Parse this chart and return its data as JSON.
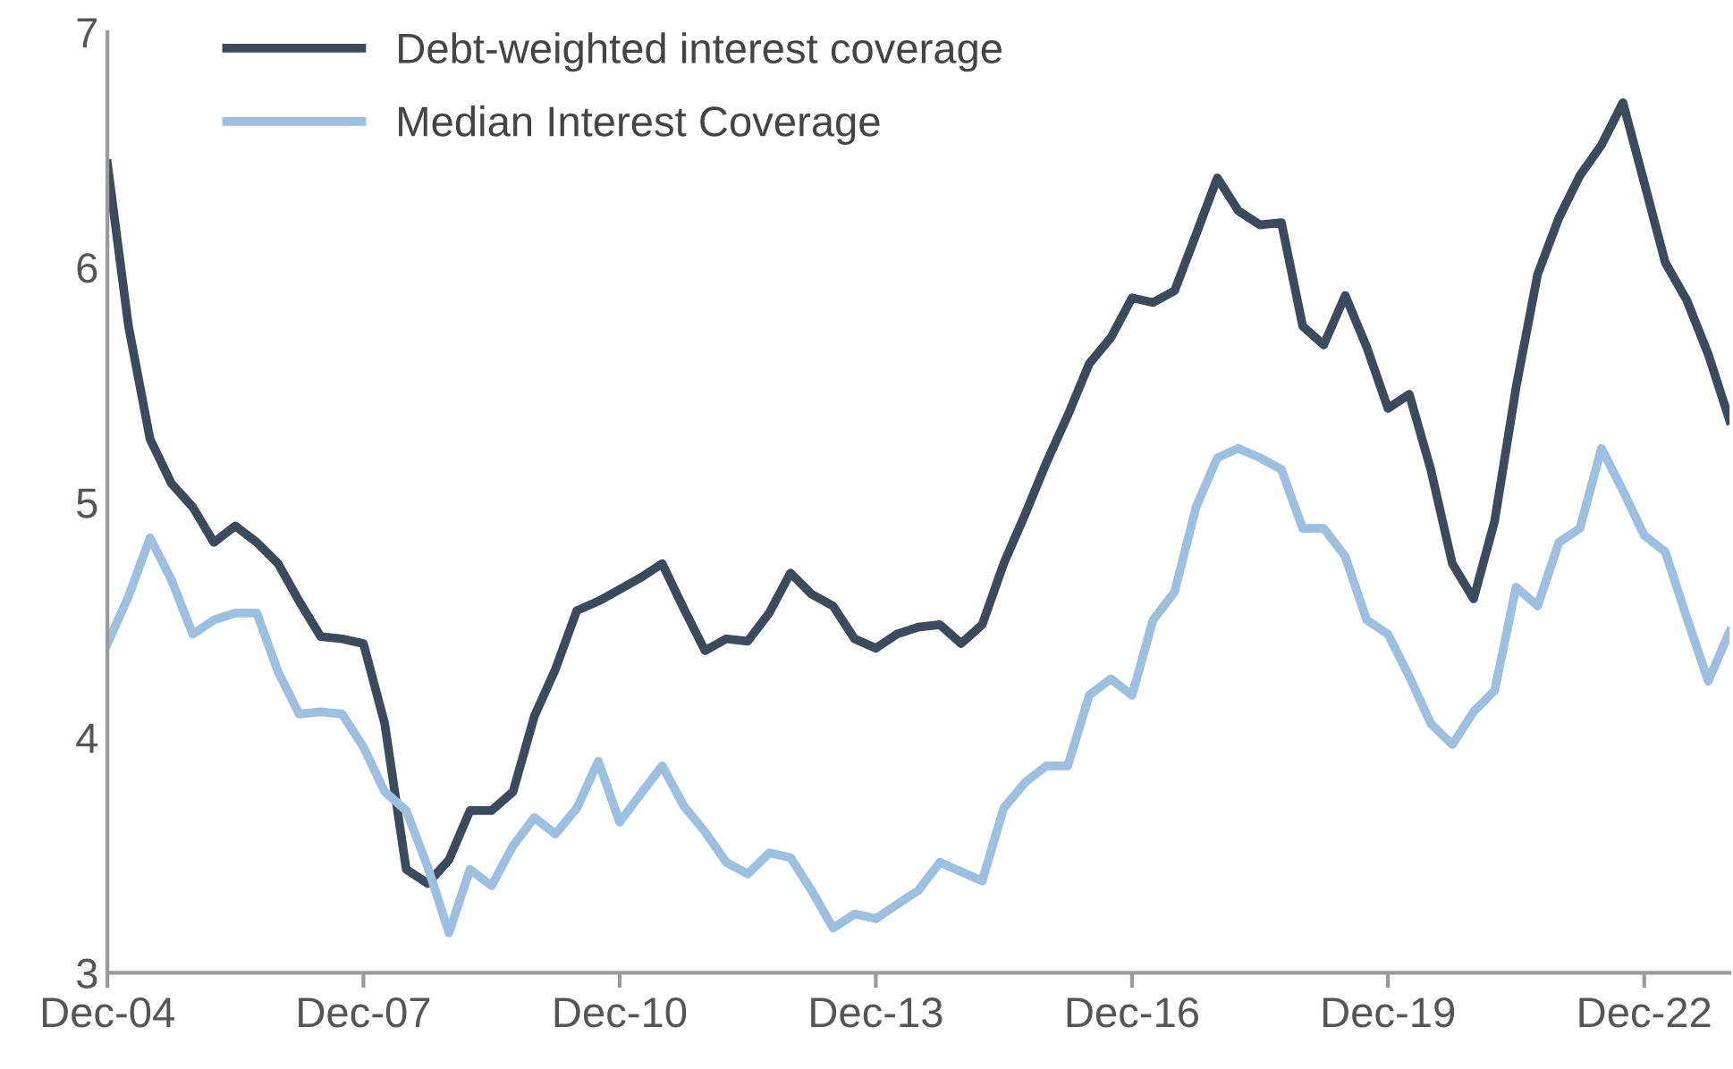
{
  "chart_data": {
    "type": "line",
    "x": [
      "2004-12",
      "2005-03",
      "2005-06",
      "2005-09",
      "2005-12",
      "2006-03",
      "2006-06",
      "2006-09",
      "2006-12",
      "2007-03",
      "2007-06",
      "2007-09",
      "2007-12",
      "2008-03",
      "2008-06",
      "2008-09",
      "2008-12",
      "2009-03",
      "2009-06",
      "2009-09",
      "2009-12",
      "2010-03",
      "2010-06",
      "2010-09",
      "2010-12",
      "2011-03",
      "2011-06",
      "2011-09",
      "2011-12",
      "2012-03",
      "2012-06",
      "2012-09",
      "2012-12",
      "2013-03",
      "2013-06",
      "2013-09",
      "2013-12",
      "2014-03",
      "2014-06",
      "2014-09",
      "2014-12",
      "2015-03",
      "2015-06",
      "2015-09",
      "2015-12",
      "2016-03",
      "2016-06",
      "2016-09",
      "2016-12",
      "2017-03",
      "2017-06",
      "2017-09",
      "2017-12",
      "2018-03",
      "2018-06",
      "2018-09",
      "2018-12",
      "2019-03",
      "2019-06",
      "2019-09",
      "2019-12",
      "2020-03",
      "2020-06",
      "2020-09",
      "2020-12",
      "2021-03",
      "2021-06",
      "2021-09",
      "2021-12",
      "2022-03",
      "2022-06",
      "2022-09",
      "2022-12",
      "2023-03",
      "2023-06",
      "2023-09",
      "2023-12"
    ],
    "series": [
      {
        "name": "Debt-weighted interest coverage",
        "color": "#3c4a5e",
        "values": [
          6.44,
          5.75,
          5.27,
          5.08,
          4.98,
          4.83,
          4.9,
          4.83,
          4.74,
          4.58,
          4.43,
          4.42,
          4.4,
          4.06,
          3.44,
          3.38,
          3.48,
          3.69,
          3.69,
          3.77,
          4.09,
          4.29,
          4.54,
          4.58,
          4.63,
          4.68,
          4.74,
          4.55,
          4.37,
          4.42,
          4.41,
          4.53,
          4.7,
          4.61,
          4.56,
          4.42,
          4.38,
          4.44,
          4.47,
          4.48,
          4.4,
          4.48,
          4.74,
          4.95,
          5.17,
          5.37,
          5.59,
          5.7,
          5.87,
          5.85,
          5.9,
          6.14,
          6.38,
          6.24,
          6.18,
          6.19,
          5.75,
          5.67,
          5.88,
          5.66,
          5.4,
          5.46,
          5.14,
          4.74,
          4.59,
          4.92,
          5.49,
          5.97,
          6.21,
          6.39,
          6.52,
          6.7,
          6.36,
          6.02,
          5.86,
          5.63,
          5.35
        ]
      },
      {
        "name": "Median Interest Coverage",
        "color": "#9dbfe0",
        "values": [
          4.4,
          4.6,
          4.85,
          4.67,
          4.44,
          4.5,
          4.53,
          4.53,
          4.28,
          4.1,
          4.11,
          4.1,
          3.96,
          3.77,
          3.69,
          3.45,
          3.17,
          3.44,
          3.37,
          3.54,
          3.66,
          3.59,
          3.7,
          3.9,
          3.64,
          3.76,
          3.88,
          3.71,
          3.6,
          3.47,
          3.42,
          3.51,
          3.49,
          3.35,
          3.19,
          3.25,
          3.23,
          3.29,
          3.35,
          3.47,
          3.43,
          3.39,
          3.7,
          3.81,
          3.88,
          3.88,
          4.18,
          4.25,
          4.18,
          4.5,
          4.62,
          4.98,
          5.19,
          5.23,
          5.19,
          5.14,
          4.89,
          4.89,
          4.77,
          4.5,
          4.44,
          4.26,
          4.06,
          3.97,
          4.11,
          4.2,
          4.64,
          4.56,
          4.83,
          4.89,
          5.23,
          5.05,
          4.86,
          4.79,
          4.51,
          4.24,
          4.45
        ]
      }
    ],
    "xlim": [
      "2004-12",
      "2023-12"
    ],
    "xticks": [
      {
        "value": "2004-12",
        "label": "Dec-04"
      },
      {
        "value": "2007-12",
        "label": "Dec-07"
      },
      {
        "value": "2010-12",
        "label": "Dec-10"
      },
      {
        "value": "2013-12",
        "label": "Dec-13"
      },
      {
        "value": "2016-12",
        "label": "Dec-16"
      },
      {
        "value": "2019-12",
        "label": "Dec-19"
      },
      {
        "value": "2022-12",
        "label": "Dec-22"
      }
    ],
    "ylim": [
      3,
      7
    ],
    "yticks": [
      3,
      4,
      5,
      6,
      7
    ],
    "grid": false,
    "legend": "top left",
    "marker": "none",
    "line_style": "solid"
  }
}
